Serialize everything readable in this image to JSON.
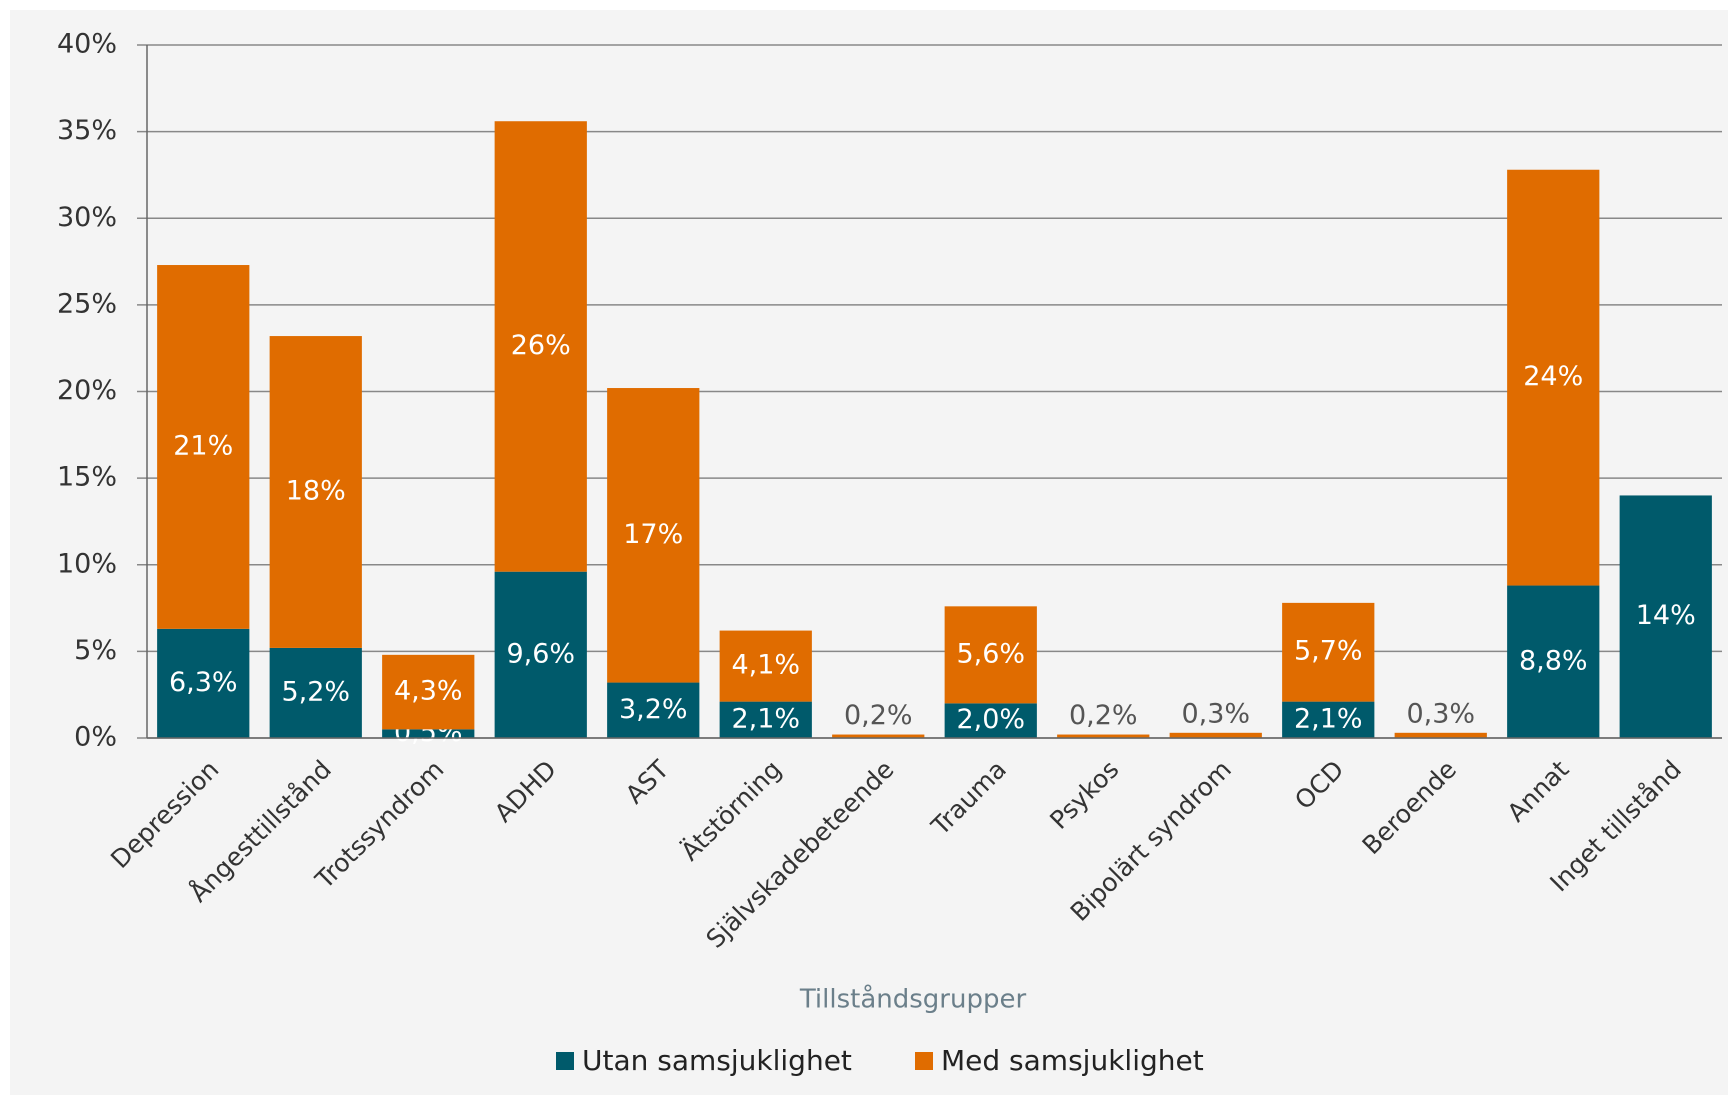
{
  "chart_data": {
    "type": "stacked_bar",
    "x_label": "Tillståndsgrupper",
    "categories": [
      "Depression",
      "Ångesttillstånd",
      "Trotssyndrom",
      "ADHD",
      "AST",
      "Ätstörning",
      "Självskadebeteende",
      "Trauma",
      "Psykos",
      "Bipolärt syndrom",
      "OCD",
      "Beroende",
      "Annat",
      "Inget tillstånd"
    ],
    "series": [
      {
        "name": "Utan samsjuklighet",
        "color": "#005a6b",
        "values": [
          6.3,
          5.2,
          0.5,
          9.6,
          3.2,
          2.1,
          null,
          2.0,
          null,
          null,
          2.1,
          null,
          8.8,
          14
        ],
        "value_labels": [
          "6,3%",
          "5,2%",
          "0,5%",
          "9,6%",
          "3,2%",
          "2,1%",
          null,
          "2,0%",
          null,
          null,
          "2,1%",
          null,
          "8,8%",
          "14%"
        ]
      },
      {
        "name": "Med samsjuklighet",
        "color": "#e06c00",
        "values": [
          21,
          18,
          4.3,
          26,
          17,
          4.1,
          0.2,
          5.6,
          0.2,
          0.3,
          5.7,
          0.3,
          24,
          null
        ],
        "value_labels": [
          "21%",
          "18%",
          "4,3%",
          "26%",
          "17%",
          "4,1%",
          "0,2%",
          "5,6%",
          "0,2%",
          "0,3%",
          "5,7%",
          "0,3%",
          "24%",
          null
        ]
      }
    ],
    "ylim": [
      0,
      40
    ],
    "yticks": [
      {
        "value": 0,
        "label": "0%"
      },
      {
        "value": 5,
        "label": "5%"
      },
      {
        "value": 10,
        "label": "10%"
      },
      {
        "value": 15,
        "label": "15%"
      },
      {
        "value": 20,
        "label": "20%"
      },
      {
        "value": 25,
        "label": "25%"
      },
      {
        "value": 30,
        "label": "30%"
      },
      {
        "value": 35,
        "label": "35%"
      },
      {
        "value": 40,
        "label": "40%"
      }
    ],
    "grid": true
  }
}
